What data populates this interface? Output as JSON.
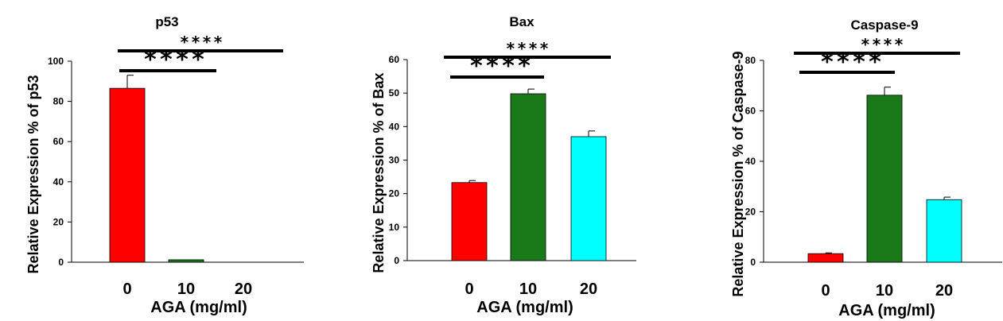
{
  "chart_data": [
    {
      "type": "bar",
      "title": "p53",
      "ylabel": "Relative Expression % of p53",
      "xlabel": "AGA (mg/ml)",
      "categories": [
        "0",
        "10",
        "20"
      ],
      "values": [
        86.5,
        1.2,
        0
      ],
      "errors": [
        6.5,
        0,
        0
      ],
      "colors": [
        "#ff0000",
        "#1a7a1a",
        "#00ffff"
      ],
      "ylim": [
        0,
        100
      ],
      "yticks": [
        0,
        20,
        40,
        60,
        80,
        100
      ],
      "significance": [
        {
          "from": "0",
          "to": "10",
          "label": "****"
        },
        {
          "from": "0",
          "to": "20",
          "label": "****"
        }
      ],
      "grid": false
    },
    {
      "type": "bar",
      "title": "Bax",
      "ylabel": "Relative Expression % of Bax",
      "xlabel": "AGA (mg/ml)",
      "categories": [
        "0",
        "10",
        "20"
      ],
      "values": [
        23.3,
        49.8,
        37.0
      ],
      "errors": [
        0.6,
        1.4,
        1.7
      ],
      "colors": [
        "#ff0000",
        "#1a7a1a",
        "#00ffff"
      ],
      "ylim": [
        0,
        60
      ],
      "yticks": [
        0,
        10,
        20,
        30,
        40,
        50,
        60
      ],
      "significance": [
        {
          "from": "0",
          "to": "10",
          "label": "****"
        },
        {
          "from": "0",
          "to": "20",
          "label": "****"
        }
      ],
      "grid": false
    },
    {
      "type": "bar",
      "title": "Caspase-9",
      "ylabel": "Relative Expression % of Caspase-9",
      "xlabel": "AGA (mg/ml)",
      "categories": [
        "0",
        "10",
        "20"
      ],
      "values": [
        3.4,
        66.2,
        24.8
      ],
      "errors": [
        0.3,
        3.2,
        1.0
      ],
      "colors": [
        "#ff0000",
        "#1a7a1a",
        "#00ffff"
      ],
      "ylim": [
        0,
        80
      ],
      "yticks": [
        0,
        20,
        40,
        60,
        80
      ],
      "significance": [
        {
          "from": "0",
          "to": "10",
          "label": "****"
        },
        {
          "from": "0",
          "to": "20",
          "label": "****"
        }
      ],
      "grid": false
    }
  ]
}
